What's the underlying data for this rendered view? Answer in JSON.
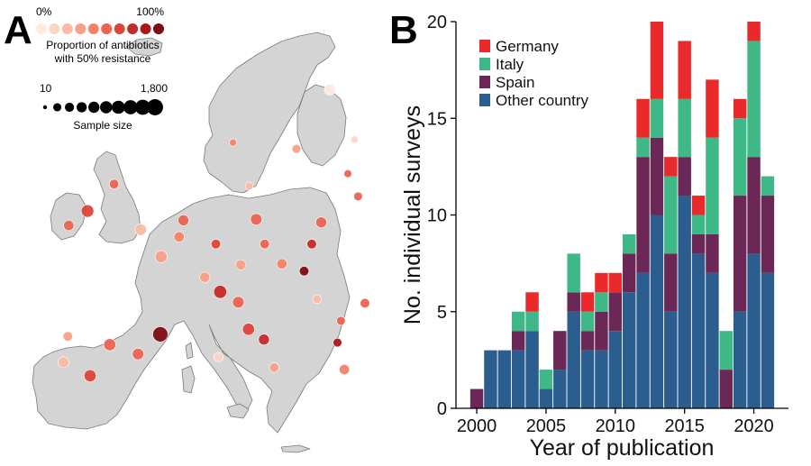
{
  "panel_a": {
    "letter": "A",
    "legend": {
      "color_min_label": "0%",
      "color_max_label": "100%",
      "color_title_line1": "Proportion of antibiotics",
      "color_title_line2": "with 50% resistance",
      "color_scale": [
        "#fde9e2",
        "#fcd5c6",
        "#fbbba6",
        "#f99f86",
        "#f58368",
        "#ec6450",
        "#dc4438",
        "#c52a28",
        "#a8171c",
        "#7d0c12"
      ],
      "size_min_label": "10",
      "size_max_label": "1,800",
      "size_title": "Sample size"
    },
    "map_fill": "#d4d4d4",
    "map_border": "#7a7a7a",
    "points": [
      {
        "lon": 18.1,
        "lat": 59.3,
        "sample_size": 300,
        "proportion": 0.3
      },
      {
        "lon": 12.6,
        "lat": 55.7,
        "sample_size": 200,
        "proportion": 0.2
      },
      {
        "lon": 24.9,
        "lat": 60.2,
        "sample_size": 150,
        "proportion": 0.1
      },
      {
        "lon": 10.7,
        "lat": 59.9,
        "sample_size": 150,
        "proportion": 0.4
      },
      {
        "lon": 22.0,
        "lat": 65.0,
        "sample_size": 600,
        "proportion": 0.05
      },
      {
        "lon": -3.2,
        "lat": 55.9,
        "sample_size": 400,
        "proportion": 0.5
      },
      {
        "lon": -6.3,
        "lat": 53.3,
        "sample_size": 900,
        "proportion": 0.7
      },
      {
        "lon": -8.5,
        "lat": 51.9,
        "sample_size": 500,
        "proportion": 0.5
      },
      {
        "lon": -0.1,
        "lat": 51.5,
        "sample_size": 700,
        "proportion": 0.2
      },
      {
        "lon": 4.9,
        "lat": 52.4,
        "sample_size": 600,
        "proportion": 0.6
      },
      {
        "lon": 2.3,
        "lat": 48.9,
        "sample_size": 800,
        "proportion": 0.3
      },
      {
        "lon": 13.4,
        "lat": 52.5,
        "sample_size": 700,
        "proportion": 0.5
      },
      {
        "lon": 21.0,
        "lat": 52.2,
        "sample_size": 600,
        "proportion": 0.6
      },
      {
        "lon": 19.9,
        "lat": 50.1,
        "sample_size": 400,
        "proportion": 0.8
      },
      {
        "lon": 16.4,
        "lat": 48.2,
        "sample_size": 500,
        "proportion": 0.4
      },
      {
        "lon": 19.0,
        "lat": 47.5,
        "sample_size": 400,
        "proportion": 1.0
      },
      {
        "lon": 9.2,
        "lat": 45.5,
        "sample_size": 1000,
        "proportion": 0.8
      },
      {
        "lon": 11.3,
        "lat": 44.5,
        "sample_size": 700,
        "proportion": 0.5
      },
      {
        "lon": 12.5,
        "lat": 41.9,
        "sample_size": 800,
        "proportion": 0.7
      },
      {
        "lon": 14.3,
        "lat": 40.9,
        "sample_size": 600,
        "proportion": 0.8
      },
      {
        "lon": 15.5,
        "lat": 38.2,
        "sample_size": 400,
        "proportion": 0.3
      },
      {
        "lon": 9.0,
        "lat": 39.2,
        "sample_size": 400,
        "proportion": 0.1
      },
      {
        "lon": 2.2,
        "lat": 41.4,
        "sample_size": 1500,
        "proportion": 1.0
      },
      {
        "lon": -3.7,
        "lat": 40.4,
        "sample_size": 800,
        "proportion": 0.6
      },
      {
        "lon": -0.4,
        "lat": 39.5,
        "sample_size": 700,
        "proportion": 0.5
      },
      {
        "lon": -6.0,
        "lat": 37.4,
        "sample_size": 800,
        "proportion": 0.7
      },
      {
        "lon": -9.1,
        "lat": 38.7,
        "sample_size": 600,
        "proportion": 0.2
      },
      {
        "lon": -8.6,
        "lat": 41.2,
        "sample_size": 400,
        "proportion": 0.3
      },
      {
        "lon": 23.7,
        "lat": 38.0,
        "sample_size": 500,
        "proportion": 0.4
      },
      {
        "lon": 22.9,
        "lat": 40.6,
        "sample_size": 300,
        "proportion": 0.9
      },
      {
        "lon": 26.1,
        "lat": 44.4,
        "sample_size": 400,
        "proportion": 0.5
      },
      {
        "lon": 23.3,
        "lat": 42.7,
        "sample_size": 300,
        "proportion": 0.6
      },
      {
        "lon": 20.5,
        "lat": 44.8,
        "sample_size": 300,
        "proportion": 0.2
      },
      {
        "lon": 7.4,
        "lat": 46.9,
        "sample_size": 500,
        "proportion": 0.3
      },
      {
        "lon": 4.4,
        "lat": 50.8,
        "sample_size": 500,
        "proportion": 0.4
      },
      {
        "lon": 8.7,
        "lat": 50.1,
        "sample_size": 400,
        "proportion": 0.7
      },
      {
        "lon": 11.6,
        "lat": 48.1,
        "sample_size": 500,
        "proportion": 0.3
      },
      {
        "lon": 14.4,
        "lat": 50.1,
        "sample_size": 400,
        "proportion": 0.5
      },
      {
        "lon": 25.3,
        "lat": 54.7,
        "sample_size": 300,
        "proportion": 0.5
      },
      {
        "lon": 24.1,
        "lat": 56.9,
        "sample_size": 200,
        "proportion": 0.6
      }
    ]
  },
  "panel_b": {
    "letter": "B",
    "chart_data": {
      "type": "bar",
      "stacked": true,
      "x": [
        2000,
        2001,
        2002,
        2003,
        2004,
        2005,
        2006,
        2007,
        2008,
        2009,
        2010,
        2011,
        2012,
        2013,
        2014,
        2015,
        2016,
        2017,
        2018,
        2019,
        2020,
        2021
      ],
      "series": [
        {
          "name": "Other country",
          "color": "#2c5d8f",
          "values": [
            0,
            3,
            3,
            3,
            4,
            1,
            2,
            5,
            3,
            3,
            4,
            6,
            7,
            10,
            5,
            11,
            8,
            7,
            0,
            5,
            8,
            7
          ]
        },
        {
          "name": "Spain",
          "color": "#6b2856",
          "values": [
            1,
            0,
            0,
            1,
            0,
            0,
            2,
            1,
            1,
            2,
            2,
            2,
            6,
            4,
            3,
            2,
            1,
            2,
            2,
            6,
            5,
            4
          ]
        },
        {
          "name": "Italy",
          "color": "#3fb888",
          "values": [
            0,
            0,
            0,
            1,
            1,
            1,
            0,
            2,
            1,
            1,
            0,
            1,
            1,
            2,
            4,
            3,
            1,
            5,
            2,
            4,
            6,
            1
          ]
        },
        {
          "name": "Germany",
          "color": "#ea2a2a",
          "values": [
            0,
            0,
            0,
            0,
            1,
            0,
            0,
            0,
            1,
            1,
            1,
            0,
            2,
            4,
            1,
            3,
            1,
            3,
            0,
            1,
            1,
            0
          ]
        }
      ],
      "legend_order": [
        "Germany",
        "Italy",
        "Spain",
        "Other country"
      ],
      "legend_position": "top-left",
      "xlabel": "Year of publication",
      "ylabel": "No. individual surveys",
      "ylim": [
        0,
        20
      ],
      "xlim": [
        1998.5,
        2022.5
      ],
      "yticks": [
        0,
        5,
        10,
        15,
        20
      ],
      "xticks": [
        2000,
        2005,
        2010,
        2015,
        2020
      ],
      "grid": false
    }
  }
}
